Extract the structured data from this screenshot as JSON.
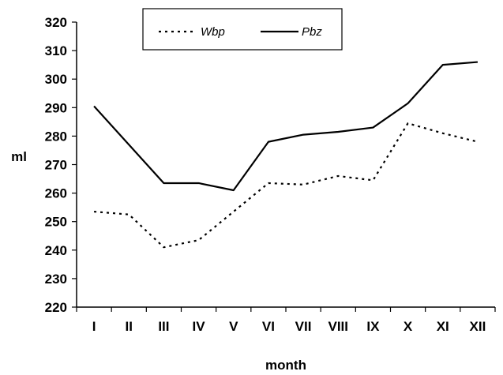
{
  "chart_data": {
    "type": "line",
    "categories": [
      "I",
      "II",
      "III",
      "IV",
      "V",
      "VI",
      "VII",
      "VIII",
      "IX",
      "X",
      "XI",
      "XII"
    ],
    "series": [
      {
        "name": "Wbp",
        "style": "dotted",
        "color": "#000000",
        "values": [
          253.5,
          252.5,
          241,
          243.5,
          253.5,
          263.5,
          263,
          266,
          264.5,
          284.5,
          281,
          278
        ]
      },
      {
        "name": "Pbz",
        "style": "solid",
        "color": "#000000",
        "values": [
          290.5,
          277,
          263.5,
          263.5,
          261,
          278,
          280.5,
          281.5,
          283,
          291.5,
          305,
          306
        ]
      }
    ],
    "xlabel": "month",
    "ylabel": "ml",
    "ylim": [
      220,
      320
    ],
    "yticks": [
      "220",
      "230",
      "240",
      "250",
      "260",
      "270",
      "280",
      "290",
      "300",
      "310",
      "320"
    ],
    "grid": false,
    "legend_position": "top-center"
  }
}
